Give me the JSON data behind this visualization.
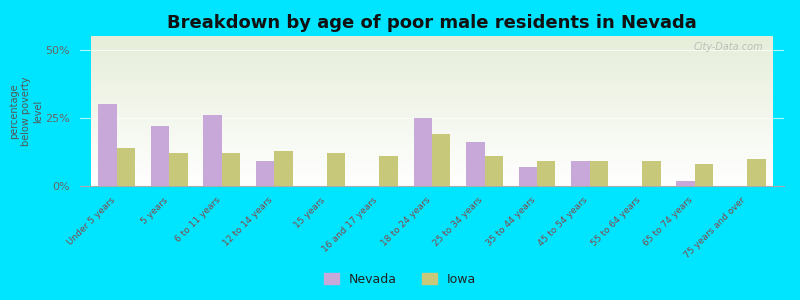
{
  "title": "Breakdown by age of poor male residents in Nevada",
  "ylabel": "percentage\nbelow poverty\nlevel",
  "categories": [
    "Under 5 years",
    "5 years",
    "6 to 11 years",
    "12 to 14 years",
    "15 years",
    "16 and 17 years",
    "18 to 24 years",
    "25 to 34 years",
    "35 to 44 years",
    "45 to 54 years",
    "55 to 64 years",
    "65 to 74 years",
    "75 years and over"
  ],
  "nevada_values": [
    30,
    22,
    26,
    9,
    0,
    0,
    25,
    16,
    7,
    9,
    0,
    2,
    0
  ],
  "iowa_values": [
    14,
    12,
    12,
    13,
    12,
    11,
    19,
    11,
    9,
    9,
    9,
    8,
    10
  ],
  "nevada_color": "#c8a8d8",
  "iowa_color": "#c8c87a",
  "background_color": "#00e5ff",
  "yticks": [
    0,
    25,
    50
  ],
  "ytick_labels": [
    "0%",
    "25%",
    "50%"
  ],
  "ylim": [
    0,
    55
  ],
  "bar_width": 0.35,
  "title_fontsize": 13,
  "watermark": "City-Data.com"
}
